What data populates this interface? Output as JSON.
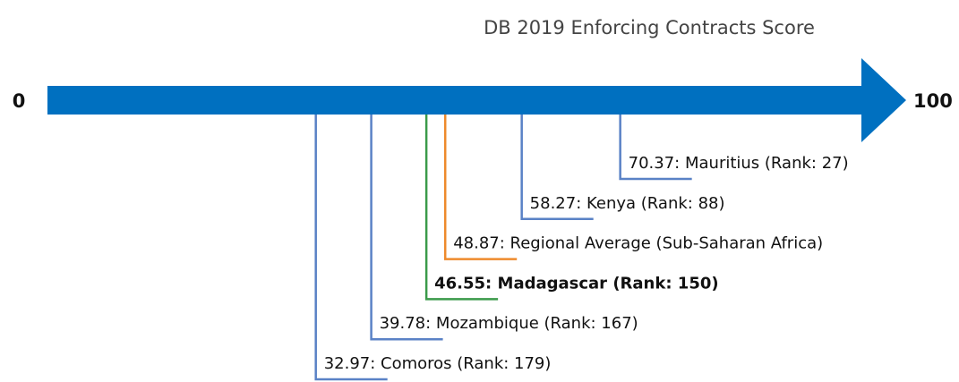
{
  "chart_data": {
    "type": "number_line",
    "title": "DB 2019 Enforcing Contracts Score",
    "xlim": [
      0,
      100
    ],
    "xticks": [
      0,
      100
    ],
    "color": "#0070c0",
    "values": [
      70.37,
      58.27,
      48.87,
      46.55,
      39.78,
      32.97
    ],
    "value_labels": [
      "70.37: Mauritius (Rank: 27)",
      "58.27: Kenya (Rank: 88)",
      "48.87: Regional Average (Sub-Saharan Africa)",
      "46.55: Madagascar (Rank: 150)",
      "39.78: Mozambique (Rank: 167)",
      "32.97: Comoros (Rank: 179)"
    ],
    "colors": [
      "#5a82c6",
      "#5a82c6",
      "#ee8a2c",
      "#3b9a4a",
      "#5a82c6",
      "#5a82c6"
    ],
    "bold": [
      false,
      false,
      false,
      true,
      false,
      false
    ]
  }
}
